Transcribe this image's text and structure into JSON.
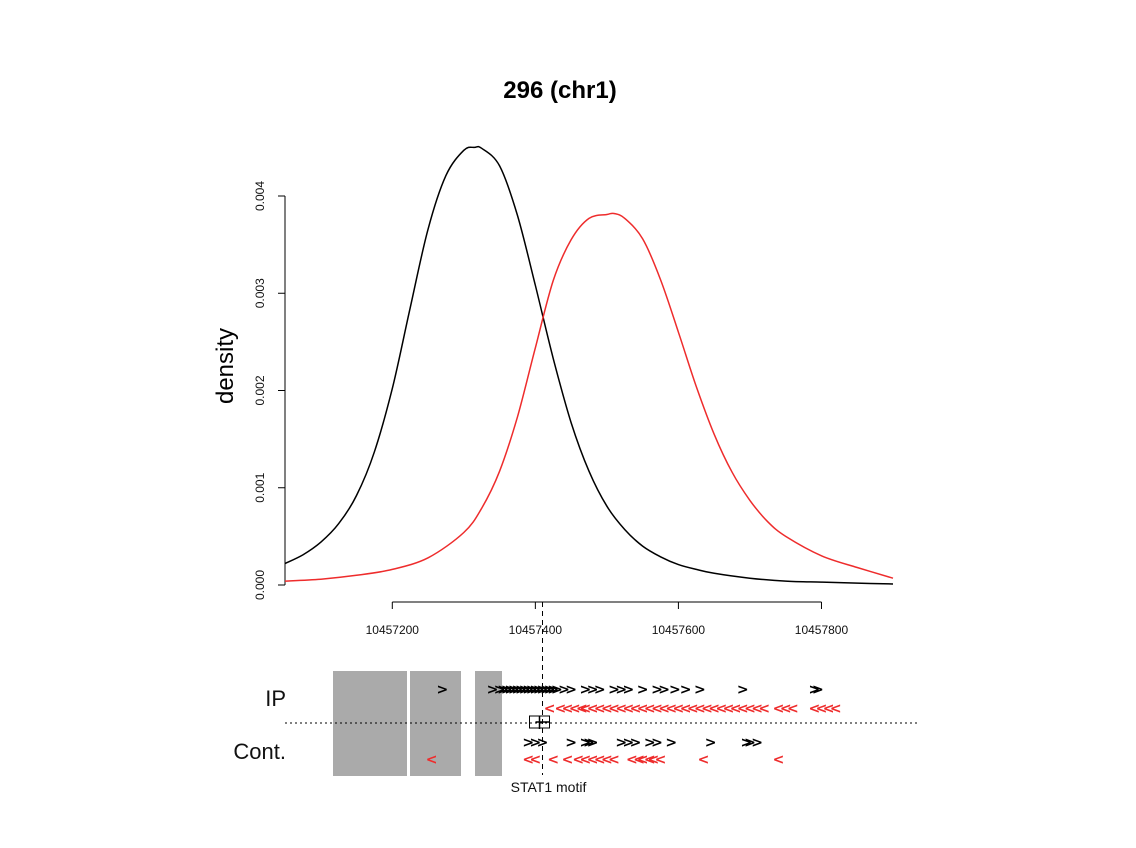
{
  "chart_data": {
    "type": "line",
    "title": "296 (chr1)",
    "xlabel": "",
    "ylabel": "density",
    "xlim": [
      10457050,
      10457900
    ],
    "ylim": [
      0,
      0.0045
    ],
    "x_ticks": [
      {
        "value": 10457200,
        "label": "10457200"
      },
      {
        "value": 10457400,
        "label": "10457400"
      },
      {
        "value": 10457600,
        "label": "10457600"
      },
      {
        "value": 10457800,
        "label": "10457800"
      }
    ],
    "y_ticks": [
      {
        "value": 0.0,
        "label": "0.000"
      },
      {
        "value": 0.001,
        "label": "0.001"
      },
      {
        "value": 0.002,
        "label": "0.002"
      },
      {
        "value": 0.003,
        "label": "0.003"
      },
      {
        "value": 0.004,
        "label": "0.004"
      }
    ],
    "grid": false,
    "series": [
      {
        "color": "#000000",
        "x": [
          10457050,
          10457075,
          10457100,
          10457125,
          10457150,
          10457175,
          10457200,
          10457225,
          10457250,
          10457275,
          10457300,
          10457315,
          10457325,
          10457350,
          10457375,
          10457400,
          10457425,
          10457450,
          10457475,
          10457500,
          10457525,
          10457550,
          10457575,
          10457600,
          10457625,
          10457650,
          10457700,
          10457750,
          10457800,
          10457850,
          10457900
        ],
        "values": [
          0.00022,
          0.00031,
          0.00044,
          0.00063,
          0.00092,
          0.00137,
          0.00202,
          0.00285,
          0.00366,
          0.00421,
          0.00447,
          0.0045,
          0.00449,
          0.00431,
          0.0038,
          0.00308,
          0.00233,
          0.00167,
          0.00117,
          0.00081,
          0.00057,
          0.0004,
          0.00029,
          0.00021,
          0.00016,
          0.00012,
          7e-05,
          4e-05,
          3e-05,
          2e-05,
          1e-05
        ]
      },
      {
        "color": "#ee2c2c",
        "x": [
          10457050,
          10457100,
          10457150,
          10457200,
          10457250,
          10457300,
          10457325,
          10457350,
          10457375,
          10457400,
          10457425,
          10457450,
          10457475,
          10457500,
          10457510,
          10457525,
          10457550,
          10457575,
          10457600,
          10457625,
          10457650,
          10457675,
          10457700,
          10457725,
          10457750,
          10457800,
          10457850,
          10457900
        ],
        "values": [
          4e-05,
          6e-05,
          0.0001,
          0.00016,
          0.00028,
          0.00054,
          0.00079,
          0.00117,
          0.00173,
          0.00244,
          0.00313,
          0.00355,
          0.00377,
          0.00381,
          0.00382,
          0.00377,
          0.00356,
          0.00314,
          0.0026,
          0.00204,
          0.00155,
          0.00116,
          0.00087,
          0.00065,
          0.0005,
          0.0003,
          0.00018,
          7e-05
        ]
      }
    ]
  },
  "tracks": {
    "ip_label": "IP",
    "control_label": "Cont.",
    "forward_glyph": ">",
    "reverse_glyph": "<",
    "motif_label": "STAT1 motif",
    "motif_position": 10457410,
    "forward_color": "#000000",
    "reverse_color": "#ee2c2c",
    "gap_color": "#aaaaaa",
    "ip_forward_reads": [
      10457270,
      10457340,
      10457350,
      10457355,
      10457360,
      10457365,
      10457370,
      10457375,
      10457380,
      10457385,
      10457390,
      10457395,
      10457400,
      10457405,
      10457410,
      10457415,
      10457420,
      10457425,
      10457430,
      10457440,
      10457450,
      10457470,
      10457480,
      10457490,
      10457510,
      10457520,
      10457530,
      10457550,
      10457570,
      10457580,
      10457595,
      10457610,
      10457630,
      10457690,
      10457790,
      10457795
    ],
    "ip_reverse_reads": [
      10457420,
      10457435,
      10457445,
      10457455,
      10457465,
      10457470,
      10457480,
      10457490,
      10457500,
      10457510,
      10457520,
      10457530,
      10457540,
      10457550,
      10457560,
      10457570,
      10457580,
      10457590,
      10457600,
      10457610,
      10457620,
      10457630,
      10457640,
      10457650,
      10457660,
      10457670,
      10457680,
      10457690,
      10457700,
      10457710,
      10457720,
      10457740,
      10457750,
      10457760,
      10457790,
      10457800,
      10457810,
      10457820
    ],
    "control_forward_reads": [
      10457390,
      10457400,
      10457410,
      10457450,
      10457470,
      10457475,
      10457480,
      10457520,
      10457530,
      10457540,
      10457560,
      10457570,
      10457590,
      10457645,
      10457695,
      10457700,
      10457710
    ],
    "control_reverse_reads": [
      10457255,
      10457390,
      10457400,
      10457425,
      10457445,
      10457460,
      10457470,
      10457480,
      10457490,
      10457500,
      10457510,
      10457535,
      10457545,
      10457550,
      10457560,
      10457565,
      10457575,
      10457635,
      10457740
    ]
  }
}
